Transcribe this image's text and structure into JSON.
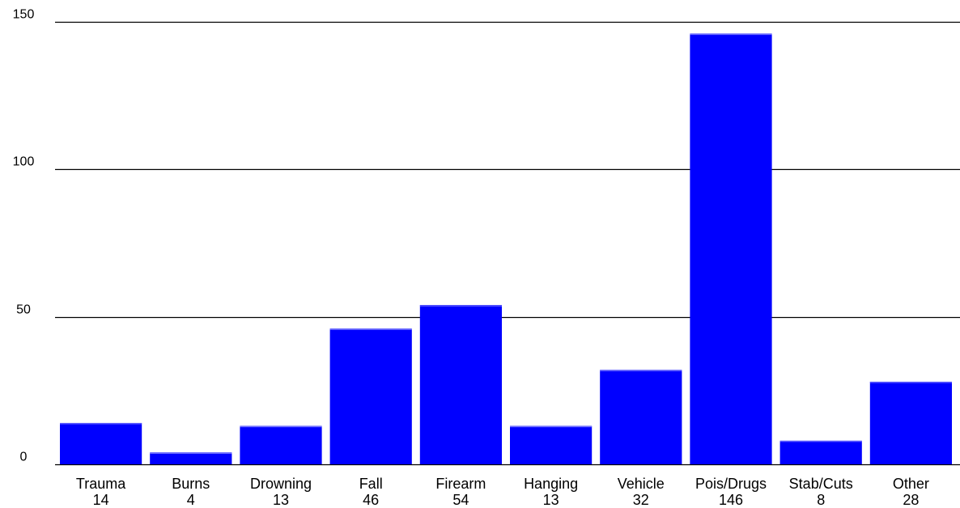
{
  "chart_data": {
    "type": "bar",
    "title": "",
    "xlabel": "",
    "ylabel": "",
    "categories": [
      "Trauma",
      "Burns",
      "Drowning",
      "Fall",
      "Firearm",
      "Hanging",
      "Vehicle",
      "Pois/Drugs",
      "Stab/Cuts",
      "Other"
    ],
    "values": [
      14,
      4,
      13,
      46,
      54,
      13,
      32,
      146,
      8,
      28
    ],
    "value_labels": [
      "14",
      "4",
      "13",
      "46",
      "54",
      "13",
      "32",
      "146",
      "8",
      "28"
    ],
    "ylim": [
      0,
      150
    ],
    "yticks": [
      0,
      50,
      100,
      150
    ],
    "ytick_labels": [
      "0",
      "50",
      "100",
      "150"
    ],
    "grid": "horizontal",
    "legend": "none",
    "bar_color": "#0000ff",
    "grid_color": "#000000"
  }
}
